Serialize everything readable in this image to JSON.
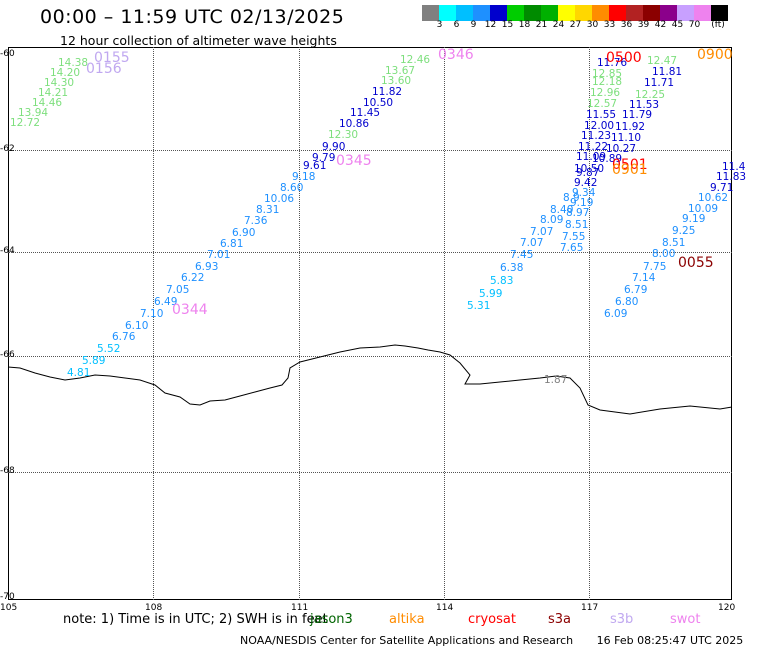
{
  "header": {
    "title": "00:00 – 11:59 UTC 02/13/2025",
    "subtitle": "12 hour collection of altimeter wave heights"
  },
  "scale": {
    "unit_label": "(ft)",
    "colors": [
      "#808080",
      "#00ffff",
      "#00bfff",
      "#1e90ff",
      "#0000cd",
      "#00cd00",
      "#008b00",
      "#00b000",
      "#ffff00",
      "#ffd700",
      "#ff8c00",
      "#ff0000",
      "#b22222",
      "#8b0000",
      "#8b008b",
      "#c8a0ff",
      "#ee82ee",
      "#000000"
    ],
    "labels": [
      "3",
      "6",
      "9",
      "12",
      "15",
      "18",
      "21",
      "24",
      "27",
      "30",
      "33",
      "36",
      "39",
      "42",
      "45",
      "70"
    ]
  },
  "axes": {
    "lat_labels": [
      "-60",
      "-62",
      "-64",
      "-66",
      "-68",
      "-70"
    ],
    "lon_labels": [
      "105",
      "108",
      "111",
      "114",
      "117",
      "120"
    ]
  },
  "observations": [
    {
      "v": "14.38",
      "c": "#7ddf7d"
    },
    {
      "v": "14.20",
      "c": "#7ddf7d"
    },
    {
      "v": "14.30",
      "c": "#7ddf7d"
    },
    {
      "v": "14.21",
      "c": "#7ddf7d"
    },
    {
      "v": "14.46",
      "c": "#7ddf7d"
    },
    {
      "v": "13.94",
      "c": "#7ddf7d"
    },
    {
      "v": "12.72",
      "c": "#7ddf7d"
    },
    {
      "v": "12.46",
      "c": "#7ddf7d"
    },
    {
      "v": "13.67",
      "c": "#7ddf7d"
    },
    {
      "v": "13.60",
      "c": "#7ddf7d"
    },
    {
      "v": "11.82",
      "c": "#0000cd"
    },
    {
      "v": "10.50",
      "c": "#0000cd"
    },
    {
      "v": "11.45",
      "c": "#0000cd"
    },
    {
      "v": "10.86",
      "c": "#0000cd"
    },
    {
      "v": "12.30",
      "c": "#7ddf7d"
    },
    {
      "v": "9.90",
      "c": "#0000cd"
    },
    {
      "v": "9.79",
      "c": "#0000cd"
    },
    {
      "v": "9.61",
      "c": "#0000cd"
    },
    {
      "v": "9.18",
      "c": "#1e90ff"
    },
    {
      "v": "8.60",
      "c": "#1e90ff"
    },
    {
      "v": "10.06",
      "c": "#1e90ff"
    },
    {
      "v": "8.31",
      "c": "#1e90ff"
    },
    {
      "v": "7.36",
      "c": "#1e90ff"
    },
    {
      "v": "6.90",
      "c": "#1e90ff"
    },
    {
      "v": "6.81",
      "c": "#1e90ff"
    },
    {
      "v": "7.01",
      "c": "#1e90ff"
    },
    {
      "v": "6.93",
      "c": "#1e90ff"
    },
    {
      "v": "6.22",
      "c": "#1e90ff"
    },
    {
      "v": "7.05",
      "c": "#1e90ff"
    },
    {
      "v": "6.49",
      "c": "#1e90ff"
    },
    {
      "v": "7.10",
      "c": "#1e90ff"
    },
    {
      "v": "6.10",
      "c": "#1e90ff"
    },
    {
      "v": "6.76",
      "c": "#1e90ff"
    },
    {
      "v": "5.52",
      "c": "#00bfff"
    },
    {
      "v": "5.89",
      "c": "#00bfff"
    },
    {
      "v": "4.81",
      "c": "#00bfff"
    },
    {
      "v": "11.76",
      "c": "#0000cd"
    },
    {
      "v": "12.47",
      "c": "#7ddf7d"
    },
    {
      "v": "12.85",
      "c": "#7ddf7d"
    },
    {
      "v": "11.81",
      "c": "#0000cd"
    },
    {
      "v": "12.18",
      "c": "#7ddf7d"
    },
    {
      "v": "11.71",
      "c": "#0000cd"
    },
    {
      "v": "12.96",
      "c": "#7ddf7d"
    },
    {
      "v": "12.25",
      "c": "#7ddf7d"
    },
    {
      "v": "12.57",
      "c": "#7ddf7d"
    },
    {
      "v": "11.53",
      "c": "#0000cd"
    },
    {
      "v": "11.55",
      "c": "#0000cd"
    },
    {
      "v": "11.79",
      "c": "#0000cd"
    },
    {
      "v": "12.00",
      "c": "#0000cd"
    },
    {
      "v": "11.92",
      "c": "#0000cd"
    },
    {
      "v": "11.23",
      "c": "#0000cd"
    },
    {
      "v": "11.10",
      "c": "#0000cd"
    },
    {
      "v": "11.22",
      "c": "#0000cd"
    },
    {
      "v": "10.27",
      "c": "#0000cd"
    },
    {
      "v": "11.09",
      "c": "#0000cd"
    },
    {
      "v": "10.89",
      "c": "#0000cd"
    },
    {
      "v": "10.50",
      "c": "#0000cd"
    },
    {
      "v": "9.87",
      "c": "#0000cd"
    },
    {
      "v": "9.42",
      "c": "#0000cd"
    },
    {
      "v": "9.34",
      "c": "#1e90ff"
    },
    {
      "v": "8.9",
      "c": "#1e90ff"
    },
    {
      "v": "9.19",
      "c": "#1e90ff"
    },
    {
      "v": "8.40",
      "c": "#1e90ff"
    },
    {
      "v": "8.97",
      "c": "#1e90ff"
    },
    {
      "v": "8.09",
      "c": "#1e90ff"
    },
    {
      "v": "8.51",
      "c": "#1e90ff"
    },
    {
      "v": "7.07",
      "c": "#1e90ff"
    },
    {
      "v": "7.55",
      "c": "#1e90ff"
    },
    {
      "v": "7.07",
      "c": "#1e90ff"
    },
    {
      "v": "7.65",
      "c": "#1e90ff"
    },
    {
      "v": "7.45",
      "c": "#1e90ff"
    },
    {
      "v": "6.38",
      "c": "#1e90ff"
    },
    {
      "v": "5.83",
      "c": "#00bfff"
    },
    {
      "v": "5.99",
      "c": "#00bfff"
    },
    {
      "v": "5.31",
      "c": "#00bfff"
    },
    {
      "v": "11.4",
      "c": "#0000cd"
    },
    {
      "v": "11.83",
      "c": "#0000cd"
    },
    {
      "v": "9.71",
      "c": "#0000cd"
    },
    {
      "v": "10.62",
      "c": "#1e90ff"
    },
    {
      "v": "10.09",
      "c": "#1e90ff"
    },
    {
      "v": "9.19",
      "c": "#1e90ff"
    },
    {
      "v": "9.25",
      "c": "#1e90ff"
    },
    {
      "v": "8.51",
      "c": "#1e90ff"
    },
    {
      "v": "8.00",
      "c": "#1e90ff"
    },
    {
      "v": "7.75",
      "c": "#1e90ff"
    },
    {
      "v": "7.14",
      "c": "#1e90ff"
    },
    {
      "v": "6.79",
      "c": "#1e90ff"
    },
    {
      "v": "6.80",
      "c": "#1e90ff"
    },
    {
      "v": "6.09",
      "c": "#1e90ff"
    },
    {
      "v": "1.87",
      "c": "#808080"
    }
  ],
  "passes": [
    {
      "t": "0155",
      "c": "#c0a8f0"
    },
    {
      "t": "0156",
      "c": "#c0a8f0"
    },
    {
      "t": "0346",
      "c": "#ee82ee"
    },
    {
      "t": "0345",
      "c": "#ee82ee"
    },
    {
      "t": "0344",
      "c": "#ee82ee"
    },
    {
      "t": "0500",
      "c": "#ff0000"
    },
    {
      "t": "0900",
      "c": "#ff8c00"
    },
    {
      "t": "0501",
      "c": "#ff0000"
    },
    {
      "t": "0901",
      "c": "#ff8c00"
    },
    {
      "t": "0055",
      "c": "#8b0000"
    }
  ],
  "note": {
    "text": "note:  1) Time is in UTC;  2) SWH is in feet"
  },
  "satellites": [
    {
      "name": "jason3",
      "color": "#006400"
    },
    {
      "name": "altika",
      "color": "#ff8c00"
    },
    {
      "name": "cryosat",
      "color": "#ff0000"
    },
    {
      "name": "s3a",
      "color": "#8b0000"
    },
    {
      "name": "s3b",
      "color": "#c0a8f0"
    },
    {
      "name": "swot",
      "color": "#ee82ee"
    }
  ],
  "footer": {
    "credit": "NOAA/NESDIS Center for Satellite Applications and Research",
    "timestamp": "16 Feb 08:25:47 UTC 2025"
  }
}
